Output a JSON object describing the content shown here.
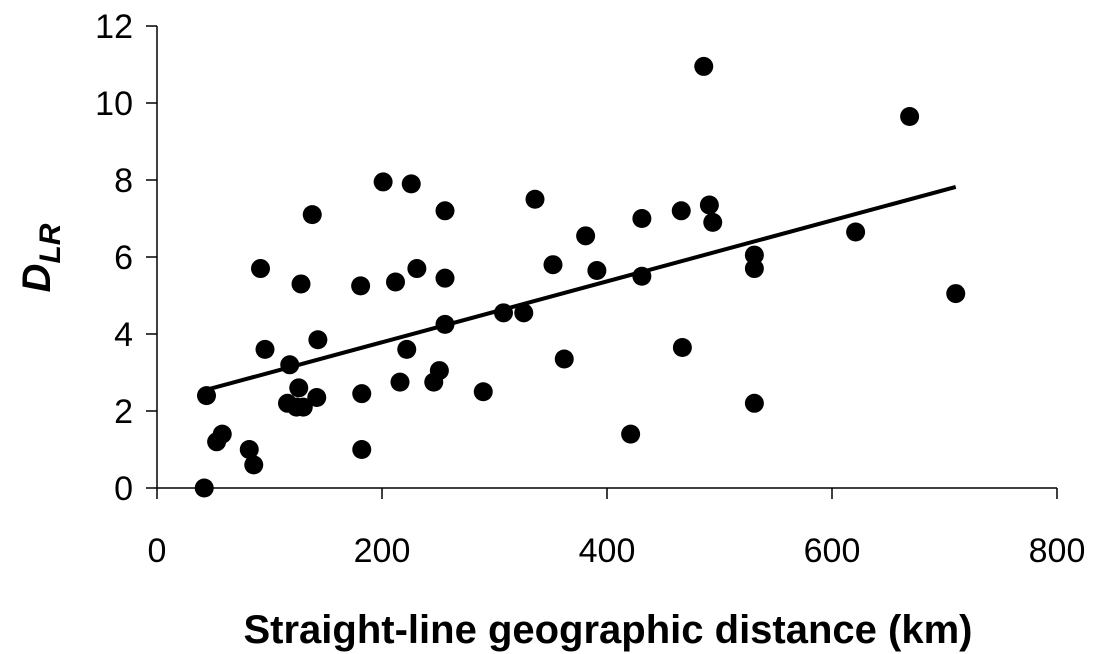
{
  "chart_data": {
    "type": "scatter",
    "title": "",
    "xlabel": "Straight-line geographic distance (km)",
    "ylabel": {
      "main": "D",
      "subscript": "LR"
    },
    "xlim": [
      0,
      800
    ],
    "ylim": [
      0,
      12
    ],
    "x_ticks": [
      0,
      200,
      400,
      600,
      800
    ],
    "y_ticks": [
      0,
      2,
      4,
      6,
      8,
      10,
      12
    ],
    "grid": false,
    "legend": "none",
    "marker_color": "#000000",
    "series": [
      {
        "points": [
          [
            42,
            0.0
          ],
          [
            44,
            2.4
          ],
          [
            53,
            1.2
          ],
          [
            58,
            1.4
          ],
          [
            82,
            1.0
          ],
          [
            86,
            0.6
          ],
          [
            92,
            5.7
          ],
          [
            96,
            3.6
          ],
          [
            116,
            2.2
          ],
          [
            118,
            3.2
          ],
          [
            124,
            2.1
          ],
          [
            126,
            2.6
          ],
          [
            128,
            5.3
          ],
          [
            130,
            2.1
          ],
          [
            138,
            7.1
          ],
          [
            142,
            2.35
          ],
          [
            143,
            3.85
          ],
          [
            181,
            5.25
          ],
          [
            182,
            2.45
          ],
          [
            182,
            1.0
          ],
          [
            201,
            7.95
          ],
          [
            212,
            5.35
          ],
          [
            216,
            2.75
          ],
          [
            222,
            3.6
          ],
          [
            226,
            7.9
          ],
          [
            231,
            5.7
          ],
          [
            246,
            2.75
          ],
          [
            251,
            3.05
          ],
          [
            256,
            4.25
          ],
          [
            256,
            7.2
          ],
          [
            256,
            5.45
          ],
          [
            290,
            2.5
          ],
          [
            308,
            4.55
          ],
          [
            326,
            4.55
          ],
          [
            336,
            7.5
          ],
          [
            352,
            5.8
          ],
          [
            362,
            3.35
          ],
          [
            381,
            6.55
          ],
          [
            391,
            5.65
          ],
          [
            421,
            1.4
          ],
          [
            431,
            7.0
          ],
          [
            431,
            5.5
          ],
          [
            466,
            7.2
          ],
          [
            467,
            3.65
          ],
          [
            486,
            10.95
          ],
          [
            491,
            7.35
          ],
          [
            494,
            6.9
          ],
          [
            531,
            6.05
          ],
          [
            531,
            5.7
          ],
          [
            531,
            2.2
          ],
          [
            621,
            6.65
          ],
          [
            669,
            9.65
          ],
          [
            710,
            5.05
          ]
        ]
      }
    ],
    "trendline": {
      "x": [
        40,
        710
      ],
      "y": [
        2.52,
        7.82
      ]
    }
  }
}
